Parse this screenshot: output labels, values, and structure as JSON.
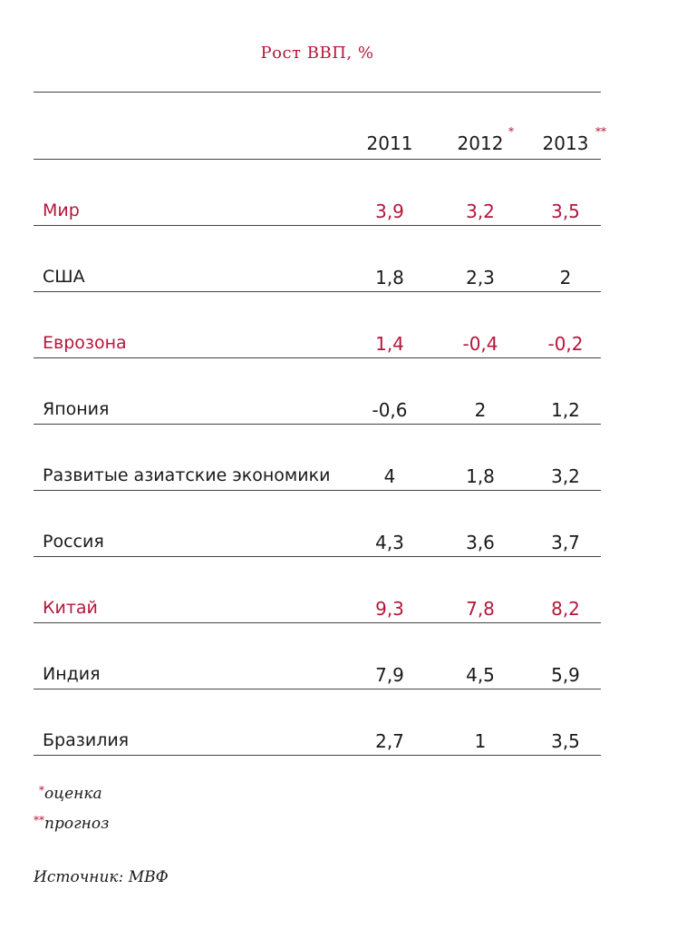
{
  "title": "Рост ВВП, %",
  "colors": {
    "accent": "#b5163a",
    "text": "#1a1a1a",
    "rule": "#444444"
  },
  "columns": [
    {
      "year": "2011",
      "mark": ""
    },
    {
      "year": "2012",
      "mark": "*"
    },
    {
      "year": "2013",
      "mark": "**"
    }
  ],
  "rows": [
    {
      "label": "Мир",
      "values": [
        "3,9",
        "3,2",
        "3,5"
      ],
      "highlight": true
    },
    {
      "label": "США",
      "values": [
        "1,8",
        "2,3",
        "2"
      ],
      "highlight": false
    },
    {
      "label": "Еврозона",
      "values": [
        "1,4",
        "-0,4",
        "-0,2"
      ],
      "highlight": true
    },
    {
      "label": "Япония",
      "values": [
        "-0,6",
        "2",
        "1,2"
      ],
      "highlight": false
    },
    {
      "label": "Развитые азиатские экономики",
      "values": [
        "4",
        "1,8",
        "3,2"
      ],
      "highlight": false
    },
    {
      "label": "Россия",
      "values": [
        "4,3",
        "3,6",
        "3,7"
      ],
      "highlight": false
    },
    {
      "label": "Китай",
      "values": [
        "9,3",
        "7,8",
        "8,2"
      ],
      "highlight": true
    },
    {
      "label": "Индия",
      "values": [
        "7,9",
        "4,5",
        "5,9"
      ],
      "highlight": false
    },
    {
      "label": "Бразилия",
      "values": [
        "2,7",
        "1",
        "3,5"
      ],
      "highlight": false
    }
  ],
  "notes": [
    {
      "mark": "*",
      "text": "оценка"
    },
    {
      "mark": "**",
      "text": "прогноз"
    }
  ],
  "source": "Источник: МВФ"
}
